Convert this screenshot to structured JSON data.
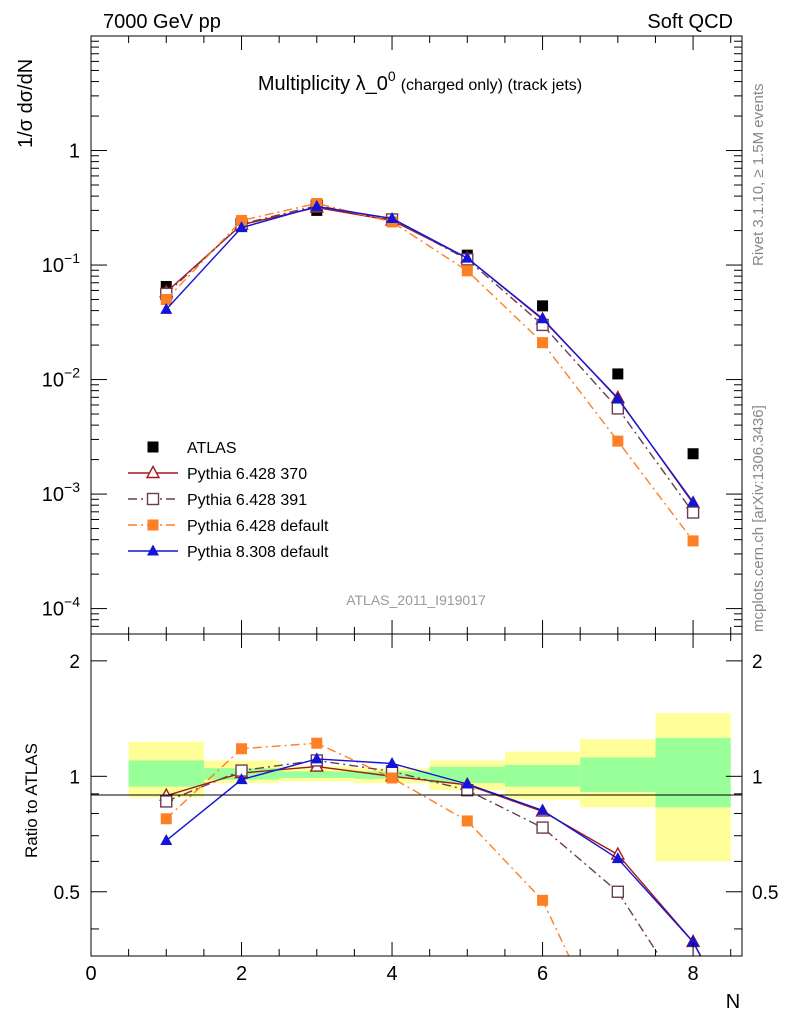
{
  "header": {
    "left": "7000 GeV pp",
    "right": "Soft QCD"
  },
  "side_labels": {
    "rivet": "Rivet 3.1.10, ≥ 1.5M events",
    "mcplots": "mcplots.cern.ch [arXiv:1306.3436]"
  },
  "colors": {
    "atlas": "#000000",
    "py370": "#a31a1a",
    "py391": "#6b3d54",
    "py_default": "#ff7f24",
    "py8": "#1414d9",
    "band_outer": "#ffff99",
    "band_inner": "#99ff99",
    "watermark": "#999999"
  },
  "chart_data": [
    {
      "id": "main",
      "type": "line",
      "title": "Multiplicity λ_0",
      "title_sup": "0",
      "title_suffix": "(charged only) (track jets)",
      "ylabel": "1/σ dσ/dN",
      "yscale": "log",
      "ylim": [
        6e-05,
        10
      ],
      "xlim": [
        0,
        8.65
      ],
      "ytick_labels": [
        {
          "value": 1,
          "base": "1",
          "exp": ""
        },
        {
          "value": 0.1,
          "base": "10",
          "exp": "−1"
        },
        {
          "value": 0.01,
          "base": "10",
          "exp": "−2"
        },
        {
          "value": 0.001,
          "base": "10",
          "exp": "−3"
        },
        {
          "value": 0.0001,
          "base": "10",
          "exp": "−4"
        }
      ],
      "watermark": "ATLAS_2011_I919017",
      "legend_position": "lower-left",
      "series": [
        {
          "name": "ATLAS",
          "key": "atlas",
          "marker": "square",
          "x": [
            1,
            2,
            3,
            4,
            5,
            6,
            7,
            8
          ],
          "y": [
            0.065,
            0.22,
            0.3,
            0.245,
            0.122,
            0.044,
            0.0112,
            0.00225
          ]
        },
        {
          "name": "Pythia 6.428 370",
          "key": "py370",
          "marker": "triangle-open",
          "linestyle": "solid",
          "x": [
            1,
            2,
            3,
            4,
            5,
            6,
            7,
            8
          ],
          "y": [
            0.058,
            0.225,
            0.318,
            0.245,
            0.115,
            0.0335,
            0.0069,
            0.00083
          ]
        },
        {
          "name": "Pythia 6.428 391",
          "key": "py391",
          "marker": "square-open",
          "linestyle": "dashdot",
          "x": [
            1,
            2,
            3,
            4,
            5,
            6,
            7,
            8
          ],
          "y": [
            0.056,
            0.228,
            0.33,
            0.25,
            0.112,
            0.03,
            0.0056,
            0.00069
          ]
        },
        {
          "name": "Pythia 6.428 default",
          "key": "py_default",
          "marker": "square",
          "linestyle": "dashdot",
          "x": [
            1,
            2,
            3,
            4,
            5,
            6,
            7,
            8
          ],
          "y": [
            0.05,
            0.245,
            0.345,
            0.238,
            0.089,
            0.021,
            0.0029,
            0.00039
          ]
        },
        {
          "name": "Pythia 8.308 default",
          "key": "py8",
          "marker": "triangle",
          "linestyle": "solid",
          "x": [
            1,
            2,
            3,
            4,
            5,
            6,
            7,
            8
          ],
          "y": [
            0.041,
            0.212,
            0.325,
            0.255,
            0.115,
            0.034,
            0.0068,
            0.00085
          ]
        }
      ]
    },
    {
      "id": "ratio",
      "type": "line",
      "ylabel": "Ratio to ATLAS",
      "xlabel": "N",
      "yscale": "log",
      "ylim": [
        0.34,
        2.35
      ],
      "xlim": [
        0,
        8.65
      ],
      "ytick_labels": [
        {
          "value": 2,
          "label": "2"
        },
        {
          "value": 1,
          "label": "1"
        },
        {
          "value": 0.5,
          "label": "0.5"
        }
      ],
      "xtick_labels": [
        "0",
        "2",
        "4",
        "6",
        "8"
      ],
      "bands": [
        {
          "x": [
            0.5,
            1.5
          ],
          "inner": [
            0.94,
            1.1
          ],
          "outer": [
            0.88,
            1.23
          ]
        },
        {
          "x": [
            1.5,
            2.5
          ],
          "inner": [
            0.98,
            1.05
          ],
          "outer": [
            0.96,
            1.1
          ]
        },
        {
          "x": [
            2.5,
            3.5
          ],
          "inner": [
            0.99,
            1.03
          ],
          "outer": [
            0.97,
            1.06
          ]
        },
        {
          "x": [
            3.5,
            4.5
          ],
          "inner": [
            0.985,
            1.03
          ],
          "outer": [
            0.96,
            1.05
          ]
        },
        {
          "x": [
            4.5,
            5.5
          ],
          "inner": [
            0.96,
            1.06
          ],
          "outer": [
            0.92,
            1.1
          ]
        },
        {
          "x": [
            5.5,
            6.5
          ],
          "inner": [
            0.94,
            1.07
          ],
          "outer": [
            0.87,
            1.16
          ]
        },
        {
          "x": [
            6.5,
            7.5
          ],
          "inner": [
            0.91,
            1.12
          ],
          "outer": [
            0.83,
            1.25
          ]
        },
        {
          "x": [
            7.5,
            8.5
          ],
          "inner": [
            0.83,
            1.26
          ],
          "outer": [
            0.6,
            1.46
          ]
        }
      ],
      "series": [
        {
          "name": "Pythia 6.428 370",
          "key": "py370",
          "marker": "triangle-open",
          "linestyle": "solid",
          "x": [
            1,
            2,
            3,
            4,
            5,
            6,
            7,
            8,
            8.1
          ],
          "y": [
            0.89,
            1.02,
            1.06,
            1.0,
            0.95,
            0.81,
            0.625,
            0.37,
            0.34
          ]
        },
        {
          "name": "Pythia 6.428 391",
          "key": "py391",
          "marker": "square-open",
          "linestyle": "dashdot",
          "x": [
            1,
            2,
            3,
            4,
            5,
            6,
            7,
            7.55
          ],
          "y": [
            0.86,
            1.035,
            1.1,
            1.03,
            0.92,
            0.735,
            0.5,
            0.34
          ]
        },
        {
          "name": "Pythia 6.428 default",
          "key": "py_default",
          "marker": "square",
          "linestyle": "dashdot",
          "x": [
            1,
            2,
            3,
            4,
            5,
            6,
            6.35
          ],
          "y": [
            0.775,
            1.18,
            1.22,
            0.99,
            0.765,
            0.475,
            0.34
          ]
        },
        {
          "name": "Pythia 8.308 default",
          "key": "py8",
          "marker": "triangle",
          "linestyle": "solid",
          "x": [
            1,
            2,
            3,
            4,
            5,
            6,
            7,
            8,
            8.1
          ],
          "y": [
            0.68,
            0.98,
            1.11,
            1.08,
            0.955,
            0.815,
            0.61,
            0.37,
            0.34
          ]
        }
      ]
    }
  ]
}
